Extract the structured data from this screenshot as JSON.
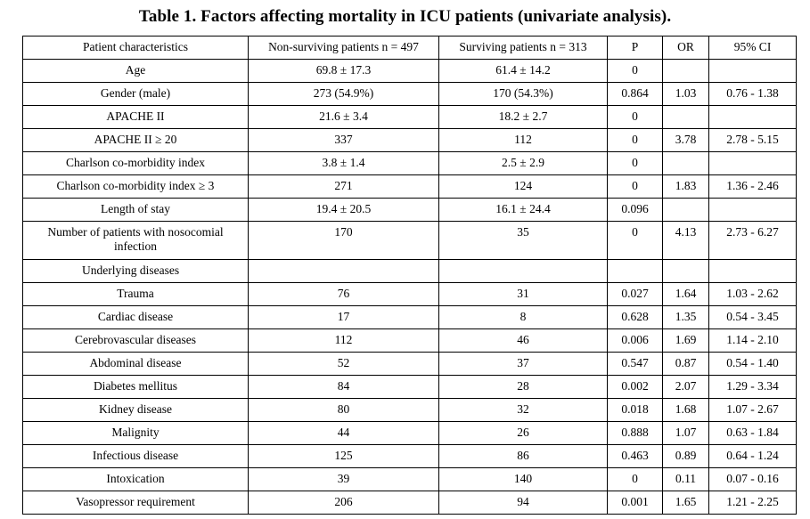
{
  "title": "Table 1. Factors affecting mortality in ICU patients (univariate analysis).",
  "headers": [
    "Patient characteristics",
    "Non-surviving patients n = 497",
    "Surviving patients n = 313",
    "P",
    "OR",
    "95% CI"
  ],
  "rows": [
    [
      "Age",
      "69.8 ± 17.3",
      "61.4 ± 14.2",
      "0",
      "",
      ""
    ],
    [
      "Gender (male)",
      "273 (54.9%)",
      "170 (54.3%)",
      "0.864",
      "1.03",
      "0.76 - 1.38"
    ],
    [
      "APACHE II",
      "21.6 ± 3.4",
      "18.2 ± 2.7",
      "0",
      "",
      ""
    ],
    [
      "APACHE II  ≥ 20",
      "337",
      "112",
      "0",
      "3.78",
      "2.78 - 5.15"
    ],
    [
      "Charlson co-morbidity index",
      "3.8 ± 1.4",
      "2.5 ± 2.9",
      "0",
      "",
      ""
    ],
    [
      "Charlson co-morbidity index ≥ 3",
      "271",
      "124",
      "0",
      "1.83",
      "1.36 - 2.46"
    ],
    [
      "Length of stay",
      "19.4 ± 20.5",
      "16.1 ± 24.4",
      "0.096",
      "",
      ""
    ],
    [
      "Number of patients with nosocomial infection",
      "170",
      "35",
      "0",
      "4.13",
      "2.73 - 6.27"
    ],
    [
      "Underlying diseases",
      "",
      "",
      "",
      "",
      ""
    ],
    [
      "Trauma",
      "76",
      "31",
      "0.027",
      "1.64",
      "1.03 - 2.62"
    ],
    [
      "Cardiac disease",
      "17",
      "8",
      "0.628",
      "1.35",
      "0.54 - 3.45"
    ],
    [
      "Cerebrovascular diseases",
      "112",
      "46",
      "0.006",
      "1.69",
      "1.14 - 2.10"
    ],
    [
      "Abdominal disease",
      "52",
      "37",
      "0.547",
      "0.87",
      "0.54 - 1.40"
    ],
    [
      "Diabetes mellitus",
      "84",
      "28",
      "0.002",
      "2.07",
      "1.29 - 3.34"
    ],
    [
      "Kidney disease",
      "80",
      "32",
      "0.018",
      "1.68",
      "1.07 - 2.67"
    ],
    [
      "Malignity",
      "44",
      "26",
      "0.888",
      "1.07",
      "0.63 - 1.84"
    ],
    [
      "Infectious disease",
      "125",
      "86",
      "0.463",
      "0.89",
      "0.64 - 1.24"
    ],
    [
      "Intoxication",
      "39",
      "140",
      "0",
      "0.11",
      "0.07 - 0.16"
    ],
    [
      "Vasopressor requirement",
      "206",
      "94",
      "0.001",
      "1.65",
      "1.21 - 2.25"
    ]
  ]
}
